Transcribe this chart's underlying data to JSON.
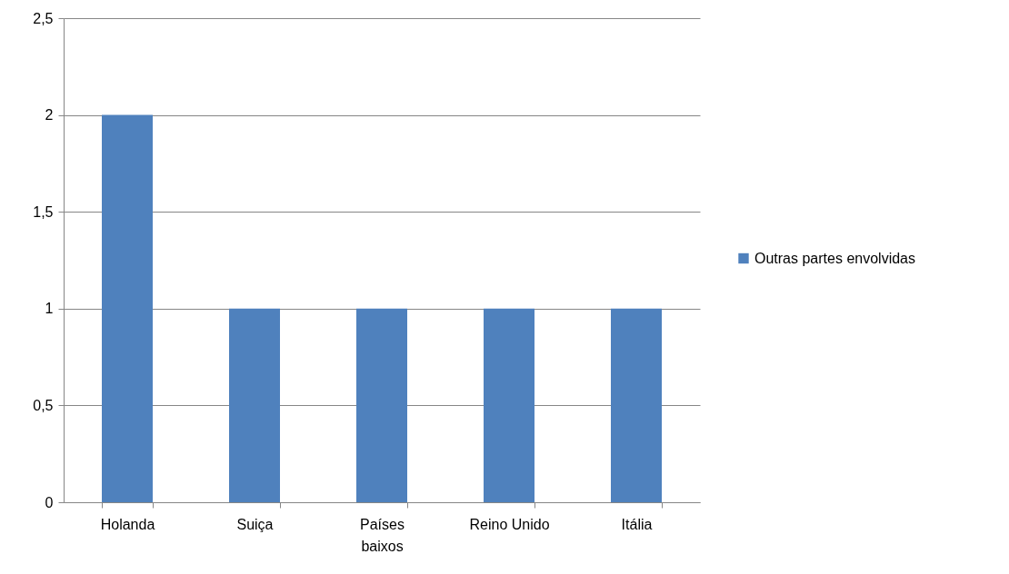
{
  "chart_data": {
    "type": "bar",
    "categories": [
      "Holanda",
      "Suiça",
      "Países baixos",
      "Reino Unido",
      "Itália"
    ],
    "series": [
      {
        "name": "Outras partes envolvidas",
        "color": "#4f81bd",
        "values": [
          2,
          1,
          1,
          1,
          1
        ]
      }
    ],
    "ylim": [
      0,
      2.5
    ],
    "yticks": [
      0,
      {
        "value": 0.5,
        "label": "0,5"
      },
      1,
      {
        "value": 1.5,
        "label": "1,5"
      },
      2,
      {
        "value": 2.5,
        "label": "2,5"
      }
    ],
    "grid": "y",
    "legend": "right"
  }
}
